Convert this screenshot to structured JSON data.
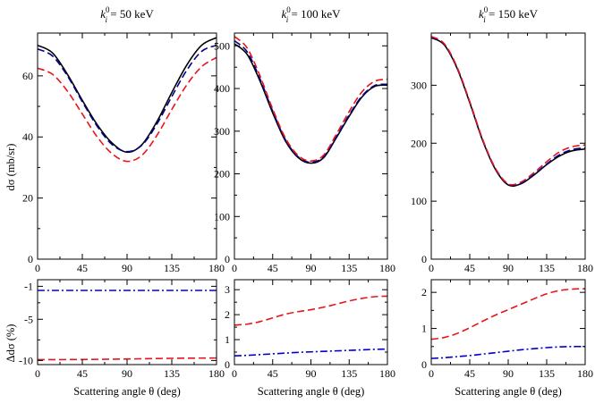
{
  "figure": {
    "ylabel_top": "dσ (mb/sr)",
    "ylabel_bottom": "Δdσ (%)",
    "xlabel": "Scattering angle θ (deg)"
  },
  "chart_data": [
    {
      "type": "line",
      "title": "k_i^0 = 50 keV",
      "title_prefix": "k",
      "title_sub": "i",
      "title_sup": "0",
      "title_value": " = 50 keV",
      "xlabel": "",
      "ylabel": "dσ (mb/sr)",
      "xlim": [
        0,
        180
      ],
      "ylim": [
        0,
        74
      ],
      "xticks": [
        0,
        45,
        90,
        135,
        180
      ],
      "yticks": [
        0,
        20,
        40,
        60
      ],
      "x": [
        0,
        15,
        30,
        45,
        60,
        75,
        90,
        105,
        120,
        135,
        150,
        165,
        180
      ],
      "series": [
        {
          "name": "solid",
          "color": "#000000",
          "dash": "",
          "values": [
            70.0,
            67.5,
            60.5,
            52.0,
            44.0,
            38.0,
            35.0,
            37.5,
            45.0,
            54.5,
            63.5,
            70.0,
            72.5
          ]
        },
        {
          "name": "dashed-black",
          "color": "#00008b",
          "dash": "8,4",
          "values": [
            68.8,
            66.5,
            60.0,
            51.5,
            43.5,
            37.5,
            35.2,
            37.3,
            44.2,
            53.2,
            61.8,
            68.0,
            70.0
          ]
        },
        {
          "name": "dashed-red",
          "color": "#e8141c",
          "dash": "8,4",
          "values": [
            62.5,
            60.5,
            55.0,
            47.5,
            40.0,
            34.5,
            32.0,
            34.0,
            40.5,
            49.0,
            57.0,
            63.0,
            66.0
          ]
        }
      ]
    },
    {
      "type": "line",
      "title": "k_i^0 = 100 keV",
      "title_prefix": "k",
      "title_sub": "i",
      "title_sup": "0",
      "title_value": " = 100 keV",
      "xlabel": "",
      "ylabel": "",
      "xlim": [
        0,
        180
      ],
      "ylim": [
        0,
        530
      ],
      "xticks": [
        0,
        45,
        90,
        135,
        180
      ],
      "yticks": [
        0,
        100,
        200,
        300,
        400,
        500
      ],
      "x": [
        0,
        15,
        30,
        45,
        60,
        75,
        90,
        105,
        120,
        135,
        150,
        165,
        180
      ],
      "series": [
        {
          "name": "solid",
          "color": "#000000",
          "dash": "",
          "values": [
            505,
            480,
            418,
            343,
            277,
            238,
            225,
            238,
            285,
            335,
            380,
            405,
            408
          ]
        },
        {
          "name": "dashed-black",
          "color": "#00008b",
          "dash": "8,4",
          "values": [
            512,
            486,
            423,
            347,
            280,
            240,
            227,
            240,
            287,
            338,
            382,
            407,
            410
          ]
        },
        {
          "name": "dashed-red",
          "color": "#e8141c",
          "dash": "8,4",
          "values": [
            522,
            495,
            430,
            352,
            284,
            243,
            230,
            244,
            293,
            346,
            392,
            417,
            422
          ]
        }
      ]
    },
    {
      "type": "line",
      "title": "k_i^0 = 150 keV",
      "title_prefix": "k",
      "title_sub": "i",
      "title_sup": "0",
      "title_value": " = 150 keV",
      "xlabel": "",
      "ylabel": "",
      "xlim": [
        0,
        180
      ],
      "ylim": [
        0,
        390
      ],
      "xticks": [
        0,
        45,
        90,
        135,
        180
      ],
      "yticks": [
        0,
        100,
        200,
        300
      ],
      "x": [
        0,
        15,
        30,
        45,
        60,
        75,
        90,
        105,
        120,
        135,
        150,
        165,
        180
      ],
      "series": [
        {
          "name": "solid",
          "color": "#000000",
          "dash": "",
          "values": [
            382,
            370,
            330,
            270,
            205,
            155,
            128,
            130,
            145,
            163,
            178,
            187,
            190
          ]
        },
        {
          "name": "dashed-black",
          "color": "#00008b",
          "dash": "8,4",
          "values": [
            383,
            371,
            331,
            271,
            206,
            156,
            129,
            131,
            146,
            164,
            180,
            189,
            192
          ]
        },
        {
          "name": "dashed-red",
          "color": "#e8141c",
          "dash": "8,4",
          "values": [
            384,
            372,
            332,
            272,
            207,
            157,
            130,
            133,
            149,
            168,
            185,
            194,
            197
          ]
        }
      ]
    },
    {
      "type": "line",
      "title": "",
      "xlabel": "Scattering angle θ (deg)",
      "ylabel": "Δdσ (%)",
      "xlim": [
        0,
        180
      ],
      "ylim": [
        -10.5,
        -0.2
      ],
      "xticks": [
        0,
        45,
        90,
        135,
        180
      ],
      "yticks": [
        -10,
        -5,
        -1
      ],
      "x": [
        0,
        45,
        90,
        135,
        180
      ],
      "series": [
        {
          "name": "dash-dot-blue",
          "color": "#0000d0",
          "dash": "8,3,2,3",
          "values": [
            -1.5,
            -1.5,
            -1.5,
            -1.5,
            -1.5
          ]
        },
        {
          "name": "dashed-red",
          "color": "#e8141c",
          "dash": "8,4",
          "values": [
            -9.9,
            -9.88,
            -9.82,
            -9.74,
            -9.7
          ]
        }
      ]
    },
    {
      "type": "line",
      "title": "",
      "xlabel": "Scattering angle θ (deg)",
      "ylabel": "",
      "xlim": [
        0,
        180
      ],
      "ylim": [
        0,
        3.4
      ],
      "xticks": [
        0,
        45,
        90,
        135,
        180
      ],
      "yticks": [
        0,
        1,
        2,
        3
      ],
      "x": [
        0,
        15,
        30,
        45,
        60,
        75,
        90,
        105,
        120,
        135,
        150,
        165,
        180
      ],
      "series": [
        {
          "name": "dash-dot-blue",
          "color": "#0000d0",
          "dash": "8,3,2,3",
          "values": [
            0.35,
            0.37,
            0.4,
            0.43,
            0.46,
            0.49,
            0.51,
            0.53,
            0.55,
            0.57,
            0.59,
            0.61,
            0.62
          ]
        },
        {
          "name": "dashed-red",
          "color": "#e8141c",
          "dash": "8,4",
          "values": [
            1.58,
            1.62,
            1.72,
            1.87,
            2.02,
            2.12,
            2.2,
            2.3,
            2.42,
            2.55,
            2.65,
            2.72,
            2.74
          ]
        }
      ]
    },
    {
      "type": "line",
      "title": "",
      "xlabel": "Scattering angle θ (deg)",
      "ylabel": "",
      "xlim": [
        0,
        180
      ],
      "ylim": [
        0,
        2.35
      ],
      "xticks": [
        0,
        45,
        90,
        135,
        180
      ],
      "yticks": [
        0,
        1,
        2
      ],
      "x": [
        0,
        15,
        30,
        45,
        60,
        75,
        90,
        105,
        120,
        135,
        150,
        165,
        180
      ],
      "series": [
        {
          "name": "dash-dot-blue",
          "color": "#0000d0",
          "dash": "8,3,2,3",
          "values": [
            0.17,
            0.19,
            0.22,
            0.25,
            0.29,
            0.33,
            0.37,
            0.41,
            0.44,
            0.47,
            0.49,
            0.5,
            0.5
          ]
        },
        {
          "name": "dashed-red",
          "color": "#e8141c",
          "dash": "8,4",
          "values": [
            0.7,
            0.75,
            0.86,
            1.02,
            1.2,
            1.37,
            1.52,
            1.67,
            1.82,
            1.96,
            2.05,
            2.09,
            2.1
          ]
        }
      ]
    }
  ]
}
